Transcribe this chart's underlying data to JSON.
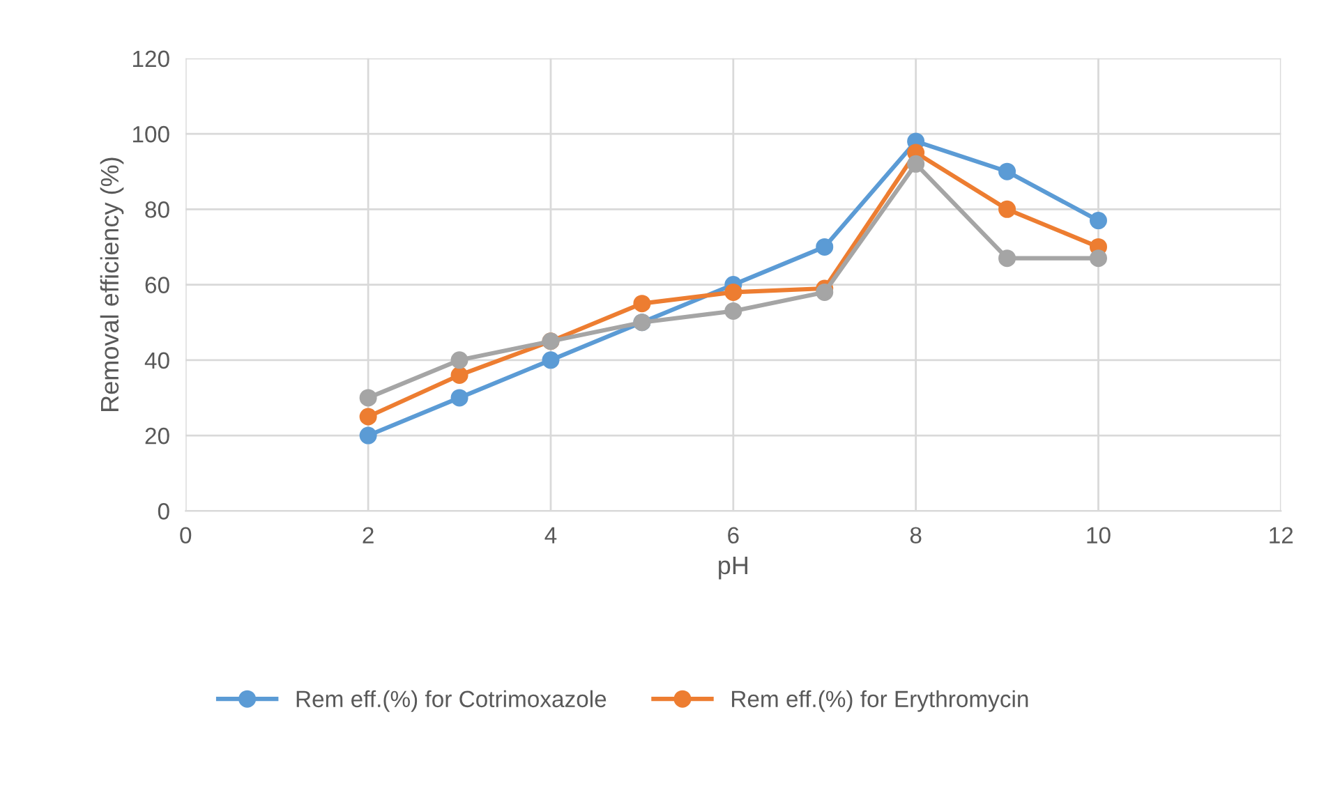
{
  "chart_data": {
    "type": "line",
    "xlabel": "pH",
    "ylabel": "Removal efficiency (%)",
    "x": [
      2,
      3,
      4,
      5,
      6,
      7,
      8,
      9,
      10
    ],
    "series": [
      {
        "name": "Rem eff.(%) for Cotrimoxazole",
        "color": "#5b9bd5",
        "values": [
          20,
          30,
          40,
          50,
          60,
          70,
          98,
          90,
          77
        ]
      },
      {
        "name": "Rem eff.(%) for Erythromycin",
        "color": "#ed7d31",
        "values": [
          25,
          36,
          45,
          55,
          58,
          59,
          95,
          80,
          70
        ]
      },
      {
        "color": "#a5a5a5",
        "values": [
          30,
          40,
          45,
          50,
          53,
          58,
          92,
          67,
          67
        ]
      }
    ],
    "xlim": [
      0,
      12
    ],
    "xticks": [
      0,
      2,
      4,
      6,
      8,
      10,
      12
    ],
    "ylim": [
      0,
      120
    ],
    "yticks": [
      0,
      20,
      40,
      60,
      80,
      100,
      120
    ],
    "grid": true,
    "legend": "bottom",
    "marker": "circle",
    "line_style": "solid"
  }
}
